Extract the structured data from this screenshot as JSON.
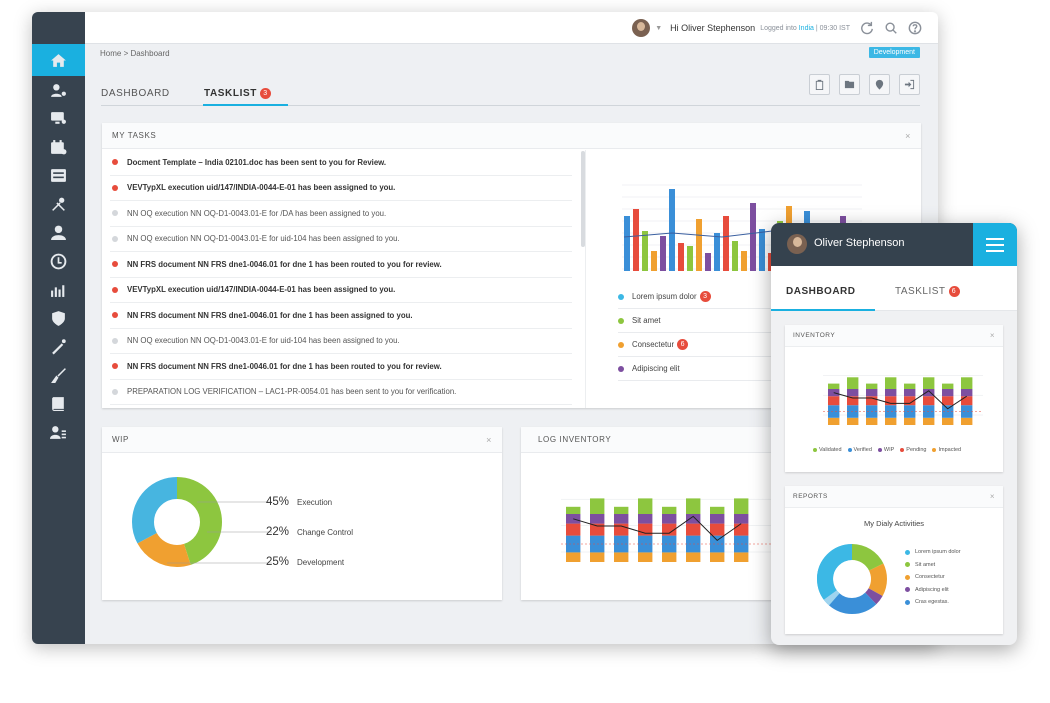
{
  "header": {
    "greeting": "Hi Oliver Stephenson",
    "logged_prefix": "Logged into",
    "logged_country": "India",
    "logged_time": "| 09:30 IST"
  },
  "breadcrumb": "Home  >  Dashboard",
  "environment_badge": "Development",
  "tabs": [
    {
      "label": "DASHBOARD"
    },
    {
      "label": "TASKLIST",
      "count": "3"
    }
  ],
  "my_tasks": {
    "title": "MY TASKS",
    "close": "×",
    "items": [
      {
        "text": "Docment Template – India 02101.doc has been sent to you for Review.",
        "unread": true
      },
      {
        "text": "VEVTypXL execution uid/147/INDIA-0044-E-01 has been assigned to you.",
        "unread": true
      },
      {
        "text": "NN OQ execution NN OQ-D1-0043.01-E for /DA has been assigned to you.",
        "unread": false
      },
      {
        "text": "NN OQ execution NN OQ-D1-0043.01-E for uid-104 has been assigned to you.",
        "unread": false
      },
      {
        "text": "NN FRS document NN FRS dne1-0046.01 for dne 1 has been routed to you for review.",
        "unread": true
      },
      {
        "text": "VEVTypXL execution uid/147/INDIA-0044-E-01 has been assigned to you.",
        "unread": true
      },
      {
        "text": "NN FRS document NN FRS dne1-0046.01 for dne 1 has been assigned to you.",
        "unread": true
      },
      {
        "text": "NN OQ execution NN OQ-D1-0043.01-E for uid-104 has been assigned to you.",
        "unread": false
      },
      {
        "text": "NN FRS document NN FRS dne1-0046.01 for dne 1 has been routed to you for review.",
        "unread": true
      },
      {
        "text": "PREPARATION LOG VERIFICATION – LAC1-PR-0054.01 has been sent to you for verification.",
        "unread": false
      }
    ],
    "legend": [
      {
        "label": "Lorem ipsum dolor",
        "color": "#3cb8e5",
        "count": "3"
      },
      {
        "label": "Sit amet",
        "color": "#8dc63f",
        "count": ""
      },
      {
        "label": "Consectetur",
        "color": "#f0a030",
        "count": "6"
      },
      {
        "label": "Adipiscing elit",
        "color": "#7d4fa0",
        "count": ""
      }
    ]
  },
  "wip": {
    "title": "WIP",
    "close": "×",
    "items": [
      {
        "pct": "45%",
        "label": "Execution"
      },
      {
        "pct": "22%",
        "label": "Change Control"
      },
      {
        "pct": "25%",
        "label": "Development"
      }
    ]
  },
  "log_inventory": {
    "title": "LOG INVENTORY"
  },
  "mobile": {
    "user_name": "Oliver Stephenson",
    "tabs": [
      {
        "label": "DASHBOARD"
      },
      {
        "label": "TASKLIST",
        "count": "6"
      }
    ],
    "inventory": {
      "title": "INVENTORY",
      "close": "×",
      "legend": [
        {
          "label": "Validated",
          "color": "#8dc63f"
        },
        {
          "label": "Verified",
          "color": "#3a8fd8"
        },
        {
          "label": "WIP",
          "color": "#7d4fa0"
        },
        {
          "label": "Pending",
          "color": "#e74c3c"
        },
        {
          "label": "Impacted",
          "color": "#f0a030"
        }
      ]
    },
    "reports": {
      "title": "REPORTS",
      "close": "×",
      "subtitle": "My Dialy Activities",
      "legend": [
        {
          "label": "Lorem ipsum dolor",
          "color": "#3cb8e5"
        },
        {
          "label": "Sit amet",
          "color": "#8dc63f"
        },
        {
          "label": "Consectetur",
          "color": "#f0a030"
        },
        {
          "label": "Adipiscing elit",
          "color": "#7d4fa0"
        },
        {
          "label": "Cras egestas.",
          "color": "#3a8fd8"
        }
      ]
    }
  }
}
